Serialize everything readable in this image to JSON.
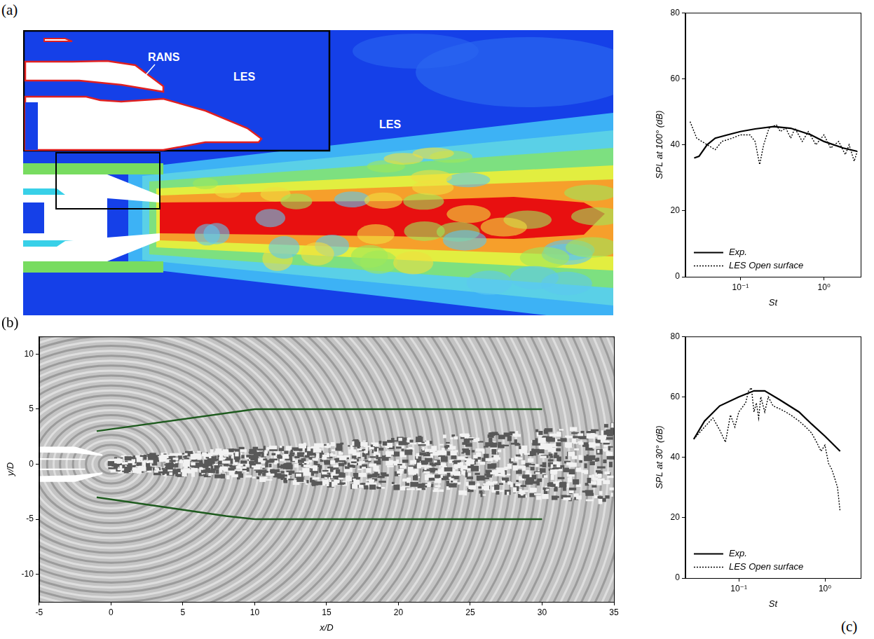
{
  "panel_a": {
    "label": "(a)",
    "inset_labels": [
      "RANS",
      "LES"
    ],
    "field_label": "LES"
  },
  "chart_data": [
    {
      "type": "line",
      "panel_label": "(b)",
      "x_label": "x/D",
      "y_label": "y/D",
      "xlim": [
        -5,
        35
      ],
      "ylim": [
        -12.5,
        11.6
      ],
      "xticks": [
        -5,
        0,
        5,
        10,
        15,
        20,
        25,
        30,
        35
      ],
      "yticks": [
        -10,
        -5,
        0,
        5,
        10
      ],
      "grid": false,
      "series": [
        {
          "color": "#1e5a1e",
          "line_style": "solid",
          "x": [
            -1,
            10,
            30
          ],
          "values": [
            3,
            5,
            5
          ]
        },
        {
          "color": "#1e5a1e",
          "line_style": "solid",
          "x": [
            -1,
            8,
            10,
            30
          ],
          "values": [
            -3,
            -4.7,
            -5,
            -5
          ]
        }
      ]
    },
    {
      "type": "line",
      "x_label": "St",
      "y_label": "SPL at 100° (dB)",
      "log": "x",
      "xlim": [
        0.022,
        2.75
      ],
      "xticks": [
        {
          "value": 0.1,
          "label": "10⁻¹"
        },
        {
          "value": 1,
          "label": "10⁰"
        }
      ],
      "ylim": [
        0,
        80
      ],
      "yticks": [
        0,
        20,
        40,
        60,
        80
      ],
      "grid": false,
      "legend": "lower left",
      "series": [
        {
          "name": "Exp.",
          "color": "#000000",
          "line_style": "solid",
          "x": [
            0.028,
            0.032,
            0.04,
            0.05,
            0.07,
            0.1,
            0.15,
            0.25,
            0.4,
            0.7,
            1.0,
            1.7,
            2.5
          ],
          "values": [
            36,
            36.5,
            40,
            42,
            43,
            44,
            44.8,
            45.5,
            45,
            43,
            41,
            39,
            38
          ]
        },
        {
          "name": "LES Open surface",
          "color": "#000000",
          "line_style": "dotted",
          "x": [
            0.025,
            0.03,
            0.04,
            0.05,
            0.06,
            0.08,
            0.1,
            0.13,
            0.15,
            0.17,
            0.19,
            0.22,
            0.27,
            0.3,
            0.35,
            0.4,
            0.45,
            0.55,
            0.65,
            0.8,
            1.0,
            1.2,
            1.5,
            1.8,
            2.0,
            2.3,
            2.5
          ],
          "values": [
            47,
            42,
            40,
            38.5,
            41,
            42,
            43,
            43,
            41,
            34,
            40,
            45,
            46,
            44,
            45,
            42,
            45,
            41,
            44,
            40,
            43,
            39,
            41,
            37,
            40,
            35,
            38
          ]
        }
      ]
    },
    {
      "type": "line",
      "panel_label": "(c)",
      "x_label": "St",
      "y_label": "SPL at 30° (dB)",
      "log": "x",
      "xlim": [
        0.024,
        2.6
      ],
      "xticks": [
        {
          "value": 0.1,
          "label": "10⁻¹"
        },
        {
          "value": 1,
          "label": "10⁰"
        }
      ],
      "ylim": [
        0,
        80
      ],
      "yticks": [
        0,
        20,
        40,
        60,
        80
      ],
      "grid": false,
      "legend": "lower left",
      "series": [
        {
          "name": "Exp.",
          "color": "#000000",
          "line_style": "solid",
          "x": [
            0.03,
            0.04,
            0.06,
            0.1,
            0.15,
            0.2,
            0.3,
            0.5,
            0.7,
            1.0,
            1.5
          ],
          "values": [
            46,
            52,
            57,
            60,
            62,
            62,
            59,
            55,
            51,
            47,
            42
          ]
        },
        {
          "name": "LES Open surface",
          "color": "#000000",
          "line_style": "dotted",
          "x": [
            0.03,
            0.04,
            0.05,
            0.06,
            0.07,
            0.08,
            0.09,
            0.1,
            0.12,
            0.13,
            0.14,
            0.15,
            0.16,
            0.17,
            0.18,
            0.2,
            0.22,
            0.25,
            0.3,
            0.35,
            0.4,
            0.5,
            0.6,
            0.7,
            0.8,
            0.9,
            1.0,
            1.1,
            1.2,
            1.3,
            1.4,
            1.5
          ],
          "values": [
            46,
            50,
            53,
            49,
            45,
            54,
            50,
            55,
            58,
            62,
            63,
            55,
            58,
            53,
            60,
            55,
            60,
            57,
            56,
            55,
            54,
            52,
            50,
            48,
            45,
            42,
            44,
            38,
            36,
            33,
            30,
            22
          ]
        }
      ]
    }
  ]
}
